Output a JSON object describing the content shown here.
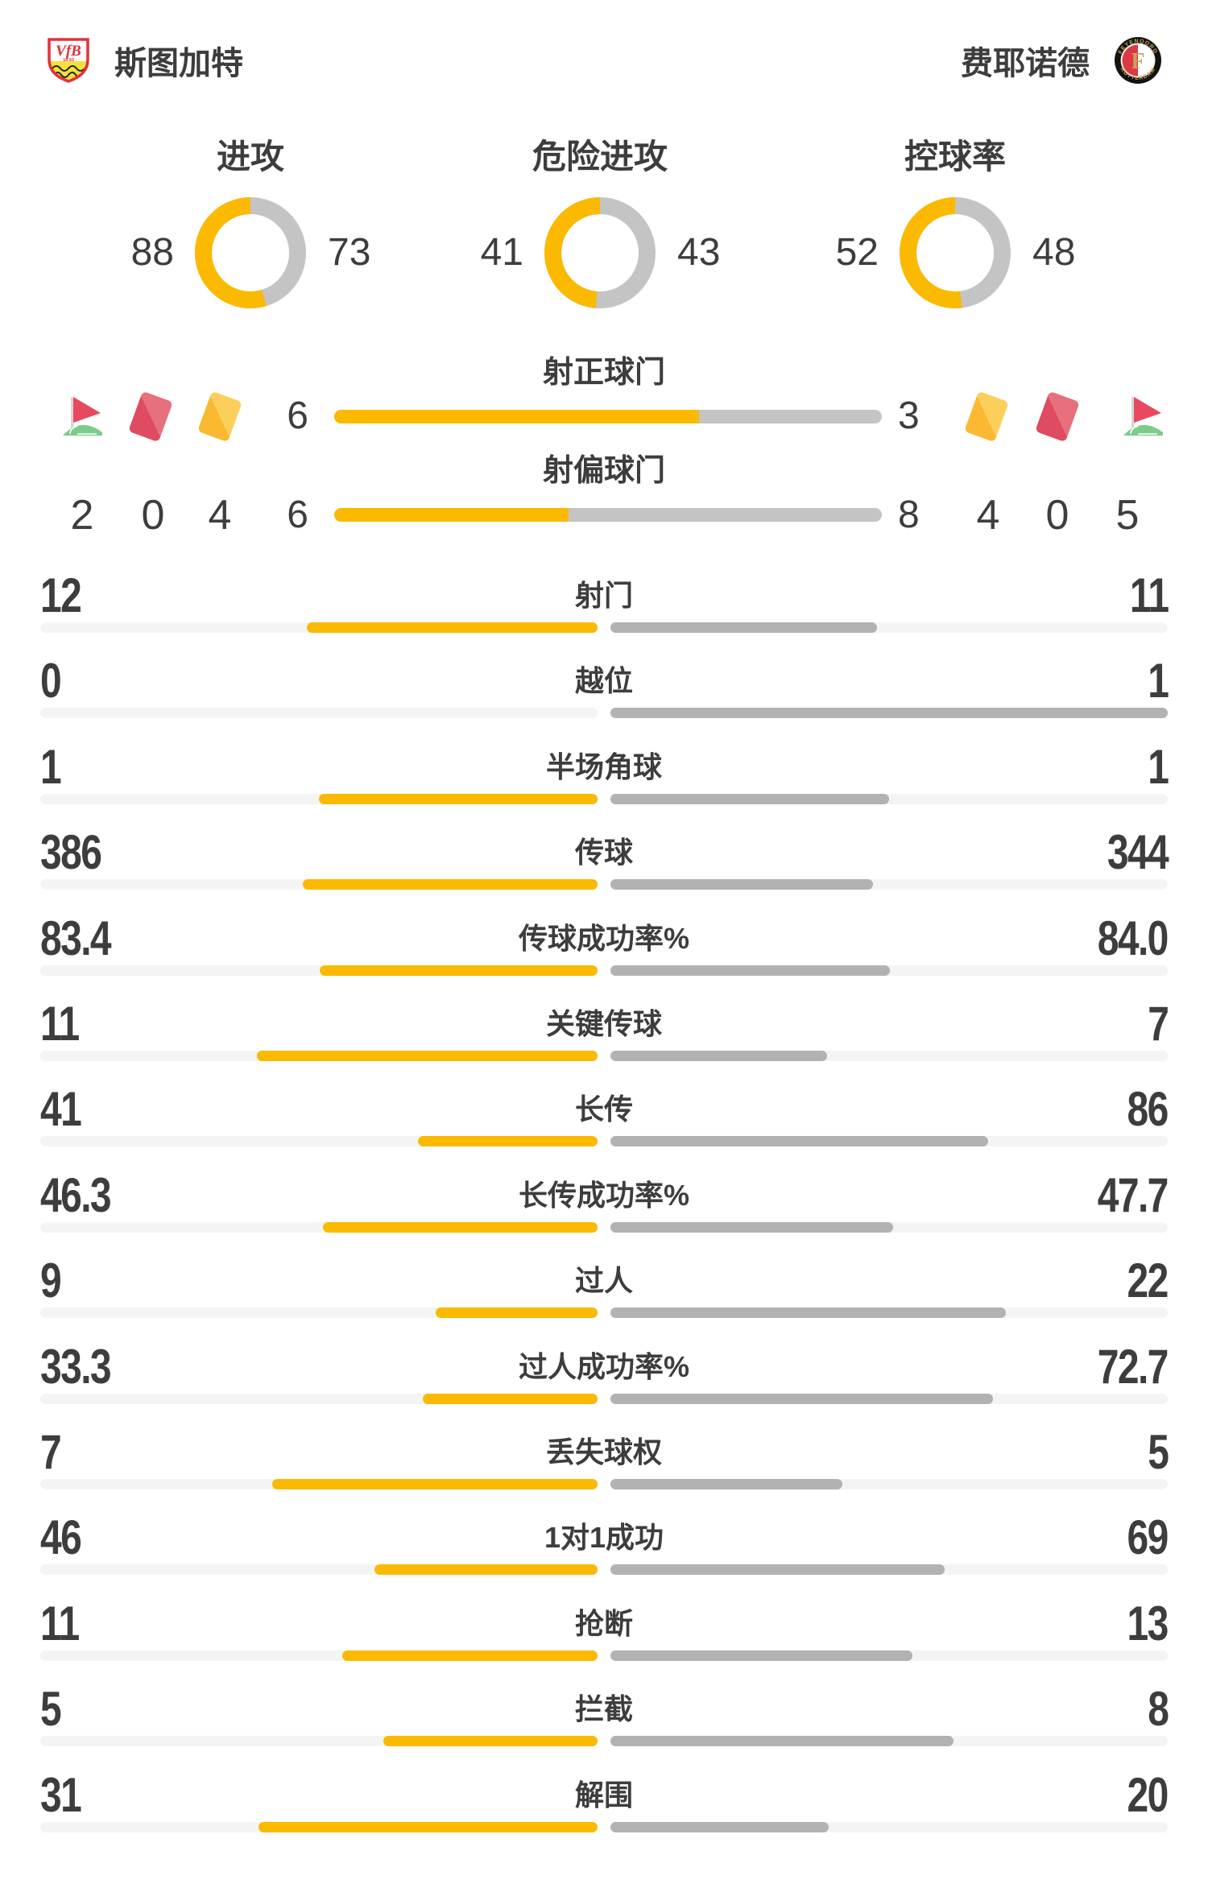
{
  "header": {
    "home_name": "斯图加特",
    "away_name": "费耶诺德"
  },
  "logos": {
    "home": {
      "monogram": "VfB",
      "year": "18 93"
    },
    "away": {
      "top": "FEYENOORD",
      "bottom": "ROTTERDAM",
      "letter": "F"
    }
  },
  "chart_data": {
    "type": "bar",
    "description": "Football match statistics, home (left, yellow) vs away (right, gray). Bars grow outward from center; fill fraction = value / (home + away).",
    "teams": {
      "home": "斯图加特",
      "away": "费耶诺德"
    },
    "donuts": [
      {
        "label": "进攻",
        "home": "88",
        "away": "73"
      },
      {
        "label": "危险进攻",
        "home": "41",
        "away": "43"
      },
      {
        "label": "控球率",
        "home": "52",
        "away": "48"
      }
    ],
    "shot_bars": [
      {
        "label": "射正球门",
        "home": "6",
        "away": "3"
      },
      {
        "label": "射偏球门",
        "home": "6",
        "away": "8"
      }
    ],
    "discipline": {
      "home": {
        "corners": "2",
        "red_cards": "0",
        "yellow_cards": "4"
      },
      "away": {
        "yellow_cards": "4",
        "red_cards": "0",
        "corners": "5"
      }
    },
    "rows": [
      {
        "label": "射门",
        "home": "12",
        "away": "11"
      },
      {
        "label": "越位",
        "home": "0",
        "away": "1"
      },
      {
        "label": "半场角球",
        "home": "1",
        "away": "1"
      },
      {
        "label": "传球",
        "home": "386",
        "away": "344"
      },
      {
        "label": "传球成功率%",
        "home": "83.4",
        "away": "84.0"
      },
      {
        "label": "关键传球",
        "home": "11",
        "away": "7"
      },
      {
        "label": "长传",
        "home": "41",
        "away": "86"
      },
      {
        "label": "长传成功率%",
        "home": "46.3",
        "away": "47.7"
      },
      {
        "label": "过人",
        "home": "9",
        "away": "22"
      },
      {
        "label": "过人成功率%",
        "home": "33.3",
        "away": "72.7"
      },
      {
        "label": "丢失球权",
        "home": "7",
        "away": "5"
      },
      {
        "label": "1对1成功",
        "home": "46",
        "away": "69"
      },
      {
        "label": "抢断",
        "home": "11",
        "away": "13"
      },
      {
        "label": "拦截",
        "home": "5",
        "away": "8"
      },
      {
        "label": "解围",
        "home": "31",
        "away": "20"
      }
    ]
  },
  "colors": {
    "home_accent": "#FBB900",
    "away_fill": "#B2B2B2",
    "track": "#F4F4F4",
    "neutral_gray": "#C4C4C4",
    "text": "#3D3D3D",
    "card_red": "#DF4B60",
    "card_red_light": "#E7707D",
    "card_yellow": "#FBB831",
    "card_yellow_light": "#FCCF5B",
    "flag_green": "#7CCB8B",
    "flag_red": "#E8495F",
    "flag_pole": "#D6D6D6"
  }
}
